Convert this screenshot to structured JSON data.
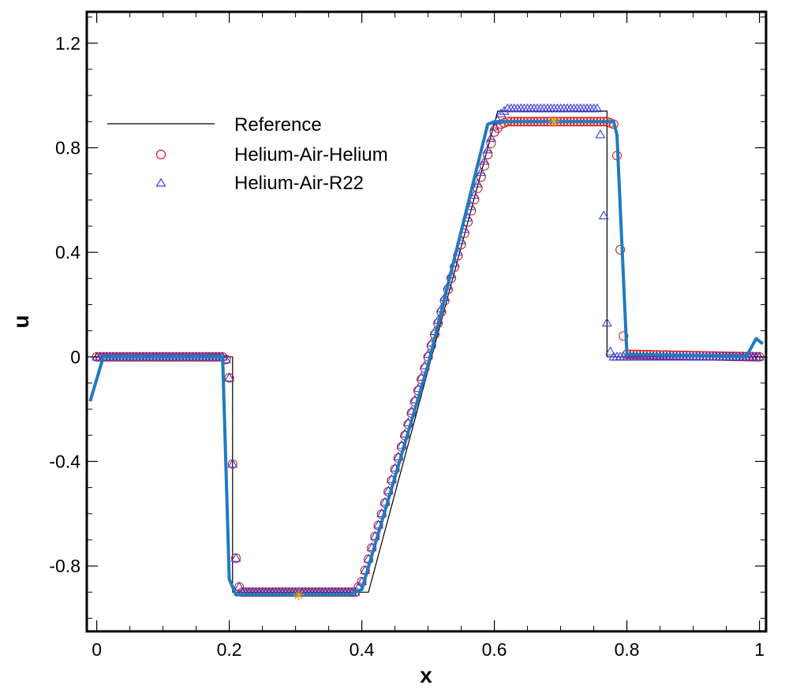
{
  "chart_data": {
    "type": "line",
    "title": "",
    "xlabel": "x",
    "ylabel": "u",
    "xlim": [
      -0.015,
      1.01
    ],
    "ylim": [
      -1.05,
      1.32
    ],
    "x_ticks": [
      0,
      0.2,
      0.4,
      0.6,
      0.8,
      1
    ],
    "x_tick_labels": [
      "0",
      "0.2",
      "0.4",
      "0.6",
      "0.8",
      "1"
    ],
    "y_ticks": [
      -0.8,
      -0.4,
      0,
      0.4,
      0.8,
      1.2
    ],
    "y_tick_labels": [
      "-0.8",
      "-0.4",
      "0",
      "0.4",
      "0.8",
      "1.2"
    ],
    "grid": false,
    "legend_position": "top-left",
    "legend": [
      "Reference",
      "Helium-Air-Helium",
      "Helium-Air-R22"
    ],
    "colors": {
      "reference": "#000000",
      "helium_air_helium": "#d62020",
      "helium_air_r22": "#3a3ad6",
      "thick_line": "#1f7bbf",
      "star_marker": "#f0a020"
    },
    "series": [
      {
        "name": "Reference",
        "style": "thin-line",
        "x": [
          0.0,
          0.205,
          0.205,
          0.41,
          0.605,
          0.77,
          0.77,
          1.0
        ],
        "y": [
          0.0,
          0.0,
          -0.9,
          -0.9,
          0.94,
          0.94,
          0.0,
          0.0
        ]
      },
      {
        "name": "Helium-Air-Helium",
        "style": "circle-markers",
        "x": [
          0.0,
          0.19,
          0.195,
          0.2,
          0.205,
          0.21,
          0.215,
          0.22,
          0.39,
          0.4,
          0.6,
          0.61,
          0.62,
          0.77,
          0.78,
          0.785,
          0.79,
          0.795,
          0.8,
          1.0
        ],
        "y": [
          0.0,
          0.0,
          -0.01,
          -0.08,
          -0.41,
          -0.77,
          -0.88,
          -0.9,
          -0.9,
          -0.86,
          0.86,
          0.89,
          0.9,
          0.9,
          0.89,
          0.77,
          0.41,
          0.08,
          0.01,
          0.0
        ]
      },
      {
        "name": "Helium-Air-R22",
        "style": "triangle-markers",
        "x": [
          0.0,
          0.19,
          0.195,
          0.2,
          0.205,
          0.21,
          0.215,
          0.22,
          0.39,
          0.4,
          0.6,
          0.61,
          0.62,
          0.755,
          0.76,
          0.765,
          0.77,
          0.775,
          0.78,
          1.0
        ],
        "y": [
          0.0,
          0.0,
          -0.01,
          -0.08,
          -0.41,
          -0.77,
          -0.88,
          -0.9,
          -0.9,
          -0.86,
          0.88,
          0.93,
          0.95,
          0.95,
          0.85,
          0.54,
          0.13,
          0.02,
          0.0,
          0.0
        ]
      },
      {
        "name": "",
        "style": "thick-line",
        "x": [
          -0.01,
          0.01,
          0.19,
          0.2,
          0.21,
          0.38,
          0.4,
          0.5,
          0.59,
          0.6,
          0.78,
          0.785,
          0.8,
          0.98,
          0.995,
          1.005
        ],
        "y": [
          -0.17,
          0.0,
          0.0,
          -0.85,
          -0.91,
          -0.91,
          -0.89,
          -0.03,
          0.89,
          0.9,
          0.9,
          0.85,
          0.01,
          0.0,
          0.07,
          0.05
        ]
      }
    ],
    "annotations": [
      {
        "type": "star-marker",
        "x": 0.305,
        "y": -0.91
      },
      {
        "type": "star-marker",
        "x": 0.69,
        "y": 0.9
      }
    ]
  }
}
